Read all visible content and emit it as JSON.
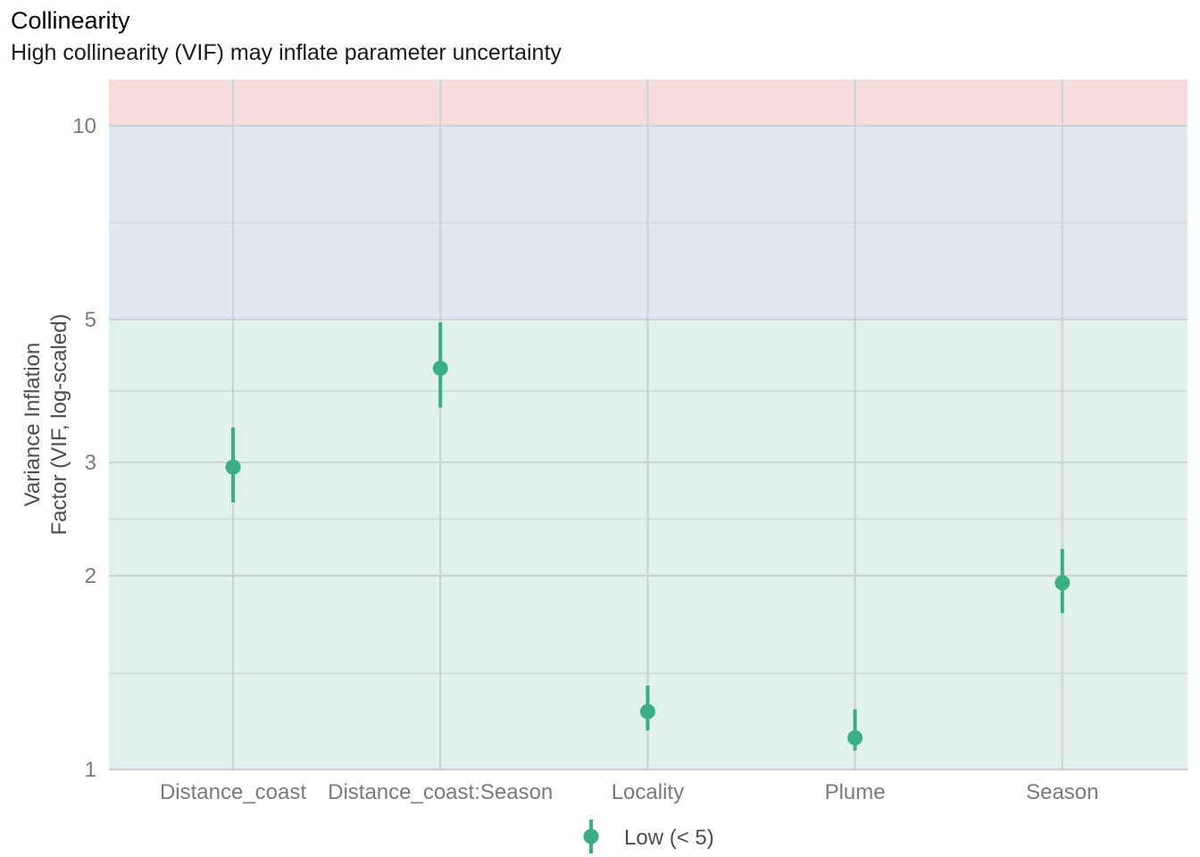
{
  "chart_data": {
    "type": "scatter",
    "title": "Collinearity",
    "subtitle": "High collinearity (VIF) may inflate parameter uncertainty",
    "ylabel_lines": [
      "Variance Inflation",
      "Factor (VIF, log-scaled)"
    ],
    "xlabel": "",
    "y_scale": "log",
    "ylim": [
      1,
      11.8
    ],
    "y_ticks": [
      1,
      2,
      3,
      5,
      10
    ],
    "y_minor_ticks": [
      1.41,
      2.45,
      3.87,
      7.07
    ],
    "grid": true,
    "bands": [
      {
        "from": 1,
        "to": 5,
        "color": "#e1f1eb"
      },
      {
        "from": 5,
        "to": 10,
        "color": "#dde8f1"
      },
      {
        "from": 10,
        "to": 11.8,
        "color": "#f7dcdd"
      }
    ],
    "categories": [
      "Distance_coast",
      "Distance_coast:Season",
      "Locality",
      "Plume",
      "Season"
    ],
    "series": [
      {
        "name": "Low (< 5)",
        "color": "#3aaf85",
        "values": [
          2.95,
          4.2,
          1.23,
          1.12,
          1.95
        ],
        "lower": [
          2.6,
          3.65,
          1.15,
          1.07,
          1.75
        ],
        "upper": [
          3.4,
          4.95,
          1.35,
          1.24,
          2.2
        ]
      }
    ],
    "legend_position": "bottom"
  }
}
